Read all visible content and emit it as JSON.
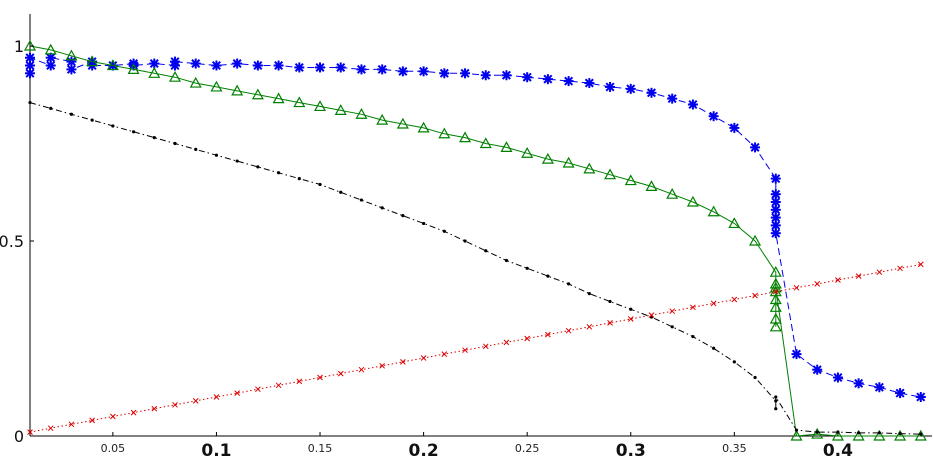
{
  "chart_data": {
    "type": "line",
    "title": "",
    "xlabel": "",
    "ylabel": "",
    "xlim": [
      0.01,
      0.443
    ],
    "ylim": [
      0,
      1.01
    ],
    "grid": false,
    "legend": "none",
    "x_ticks": [
      {
        "value": 0.05,
        "label": "0.05",
        "size": "small"
      },
      {
        "value": 0.1,
        "label": "0.1",
        "size": "big"
      },
      {
        "value": 0.15,
        "label": "0.15",
        "size": "small"
      },
      {
        "value": 0.2,
        "label": "0.2",
        "size": "big"
      },
      {
        "value": 0.25,
        "label": "0.25",
        "size": "small"
      },
      {
        "value": 0.3,
        "label": "0.3",
        "size": "big"
      },
      {
        "value": 0.35,
        "label": "0.35",
        "size": "small"
      },
      {
        "value": 0.4,
        "label": "0.4",
        "size": "big"
      }
    ],
    "y_ticks": [
      {
        "value": 0,
        "label": "0"
      },
      {
        "value": 0.5,
        "label": "0.5"
      },
      {
        "value": 1,
        "label": "1"
      }
    ],
    "series": [
      {
        "color": "#0000ee",
        "line_style": "dashed",
        "marker": "asterisk",
        "x": [
          0.01,
          0.01,
          0.01,
          0.02,
          0.02,
          0.03,
          0.03,
          0.04,
          0.04,
          0.05,
          0.06,
          0.06,
          0.07,
          0.08,
          0.08,
          0.09,
          0.1,
          0.11,
          0.12,
          0.13,
          0.14,
          0.15,
          0.16,
          0.17,
          0.18,
          0.19,
          0.2,
          0.21,
          0.22,
          0.23,
          0.24,
          0.25,
          0.26,
          0.27,
          0.28,
          0.29,
          0.3,
          0.31,
          0.32,
          0.33,
          0.34,
          0.35,
          0.36,
          0.37,
          0.37,
          0.37,
          0.37,
          0.37,
          0.37,
          0.37,
          0.38,
          0.39,
          0.4,
          0.41,
          0.42,
          0.43,
          0.44
        ],
        "y": [
          0.95,
          0.93,
          0.97,
          0.95,
          0.97,
          0.96,
          0.94,
          0.96,
          0.95,
          0.95,
          0.955,
          0.95,
          0.955,
          0.95,
          0.96,
          0.955,
          0.95,
          0.955,
          0.95,
          0.95,
          0.945,
          0.945,
          0.945,
          0.94,
          0.94,
          0.935,
          0.935,
          0.93,
          0.93,
          0.925,
          0.925,
          0.92,
          0.915,
          0.91,
          0.905,
          0.895,
          0.89,
          0.88,
          0.865,
          0.85,
          0.82,
          0.79,
          0.74,
          0.66,
          0.62,
          0.6,
          0.58,
          0.56,
          0.54,
          0.52,
          0.21,
          0.17,
          0.15,
          0.135,
          0.125,
          0.11,
          0.1
        ]
      },
      {
        "color": "#008000",
        "line_style": "solid",
        "marker": "triangle",
        "x": [
          0.01,
          0.02,
          0.03,
          0.04,
          0.05,
          0.06,
          0.07,
          0.08,
          0.09,
          0.1,
          0.11,
          0.12,
          0.13,
          0.14,
          0.15,
          0.16,
          0.17,
          0.18,
          0.19,
          0.2,
          0.21,
          0.22,
          0.23,
          0.24,
          0.25,
          0.26,
          0.27,
          0.28,
          0.29,
          0.3,
          0.31,
          0.32,
          0.33,
          0.34,
          0.35,
          0.36,
          0.37,
          0.37,
          0.37,
          0.37,
          0.37,
          0.37,
          0.37,
          0.37,
          0.38,
          0.39,
          0.4,
          0.41,
          0.42,
          0.43,
          0.44
        ],
        "y": [
          1.0,
          0.99,
          0.975,
          0.96,
          0.95,
          0.94,
          0.93,
          0.92,
          0.905,
          0.895,
          0.885,
          0.875,
          0.865,
          0.855,
          0.845,
          0.835,
          0.825,
          0.81,
          0.8,
          0.79,
          0.775,
          0.765,
          0.75,
          0.74,
          0.725,
          0.71,
          0.7,
          0.685,
          0.67,
          0.655,
          0.64,
          0.62,
          0.6,
          0.575,
          0.545,
          0.5,
          0.42,
          0.39,
          0.37,
          0.35,
          0.33,
          0.3,
          0.28,
          0.38,
          0.0,
          0.005,
          0.0,
          0.0,
          0.0,
          0.0,
          0.0
        ]
      },
      {
        "color": "#000000",
        "line_style": "dashdot",
        "marker": "dot",
        "x": [
          0.01,
          0.02,
          0.03,
          0.04,
          0.05,
          0.06,
          0.07,
          0.08,
          0.09,
          0.1,
          0.11,
          0.12,
          0.13,
          0.14,
          0.15,
          0.16,
          0.17,
          0.18,
          0.19,
          0.2,
          0.21,
          0.22,
          0.23,
          0.24,
          0.25,
          0.26,
          0.27,
          0.28,
          0.29,
          0.3,
          0.31,
          0.32,
          0.33,
          0.34,
          0.35,
          0.36,
          0.37,
          0.37,
          0.37,
          0.38,
          0.39,
          0.4,
          0.41,
          0.42,
          0.43,
          0.44
        ],
        "y": [
          0.855,
          0.84,
          0.825,
          0.81,
          0.795,
          0.78,
          0.765,
          0.75,
          0.735,
          0.72,
          0.705,
          0.69,
          0.675,
          0.66,
          0.645,
          0.625,
          0.605,
          0.585,
          0.565,
          0.545,
          0.525,
          0.5,
          0.475,
          0.45,
          0.43,
          0.41,
          0.39,
          0.365,
          0.345,
          0.325,
          0.305,
          0.28,
          0.255,
          0.225,
          0.19,
          0.15,
          0.09,
          0.07,
          0.1,
          0.015,
          0.01,
          0.01,
          0.008,
          0.008,
          0.006,
          0.005
        ]
      },
      {
        "color": "#dd0000",
        "line_style": "dotted",
        "marker": "x",
        "x": [
          0.01,
          0.02,
          0.03,
          0.04,
          0.05,
          0.06,
          0.07,
          0.08,
          0.09,
          0.1,
          0.11,
          0.12,
          0.13,
          0.14,
          0.15,
          0.16,
          0.17,
          0.18,
          0.19,
          0.2,
          0.21,
          0.22,
          0.23,
          0.24,
          0.25,
          0.26,
          0.27,
          0.28,
          0.29,
          0.3,
          0.31,
          0.32,
          0.33,
          0.34,
          0.35,
          0.36,
          0.37,
          0.38,
          0.39,
          0.4,
          0.41,
          0.42,
          0.43,
          0.44
        ],
        "y": [
          0.01,
          0.02,
          0.03,
          0.04,
          0.05,
          0.06,
          0.07,
          0.08,
          0.09,
          0.1,
          0.11,
          0.12,
          0.13,
          0.14,
          0.15,
          0.16,
          0.17,
          0.18,
          0.19,
          0.2,
          0.21,
          0.22,
          0.23,
          0.24,
          0.25,
          0.26,
          0.27,
          0.28,
          0.29,
          0.3,
          0.31,
          0.32,
          0.33,
          0.34,
          0.35,
          0.36,
          0.37,
          0.38,
          0.39,
          0.4,
          0.41,
          0.42,
          0.43,
          0.44
        ]
      }
    ]
  }
}
